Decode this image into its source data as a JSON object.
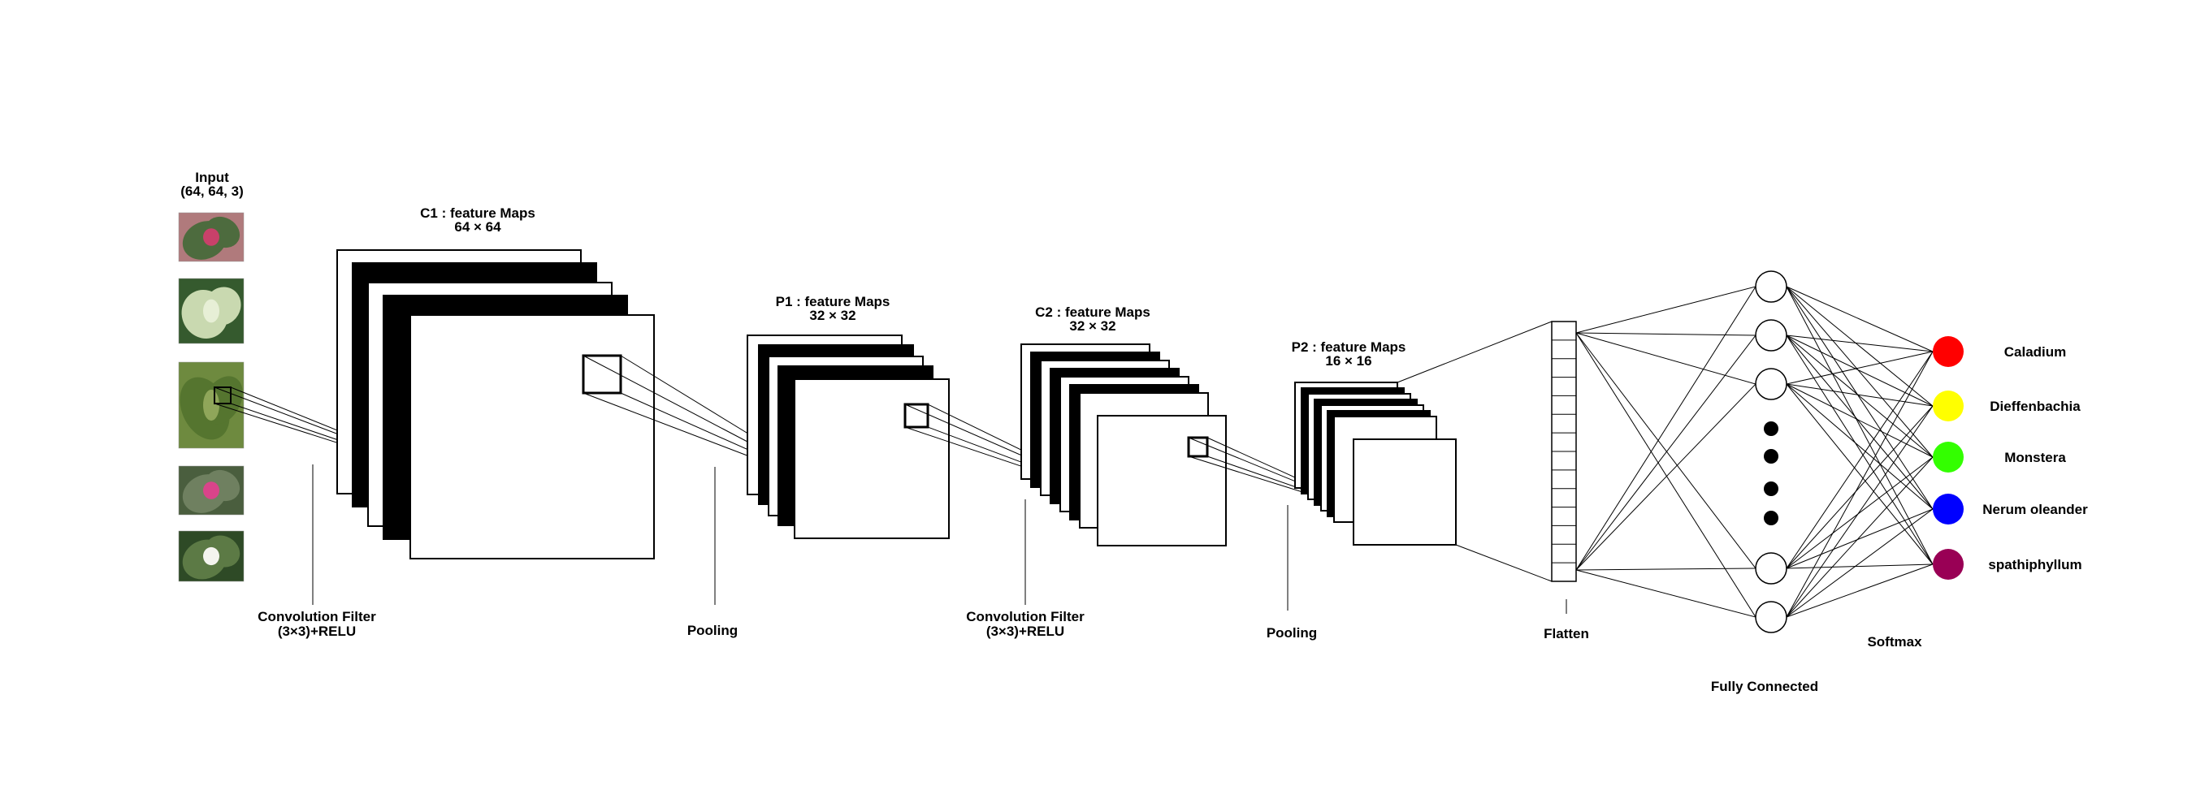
{
  "labels": {
    "input_title": "Input",
    "input_shape": "(64, 64, 3)",
    "c1_title": "C1 : feature Maps",
    "c1_size": "64 × 64",
    "p1_title": "P1 : feature Maps",
    "p1_size": "32 × 32",
    "c2_title": "C2 : feature Maps",
    "c2_size": "32 × 32",
    "p2_title": "P2 : feature Maps",
    "p2_size": "16 × 16",
    "conv1_line1": "Convolution Filter",
    "conv1_line2": "(3×3)+RELU",
    "pool1": "Pooling",
    "conv2_line1": "Convolution Filter",
    "conv2_line2": "(3×3)+RELU",
    "pool2": "Pooling",
    "flatten": "Flatten",
    "fully_connected": "Fully Connected",
    "softmax": "Softmax"
  },
  "inputs": [
    {
      "name": "caladium",
      "bg": "#b07a7c",
      "leaf": "#4d6b3e",
      "accent": "#c8416a"
    },
    {
      "name": "dieffenbachia",
      "bg": "#355a2e",
      "leaf": "#c9d9b0",
      "accent": "#e7efd6"
    },
    {
      "name": "monstera",
      "bg": "#6e8a3f",
      "leaf": "#55752f",
      "accent": "#8fa65a"
    },
    {
      "name": "oleander",
      "bg": "#4a5e3e",
      "leaf": "#6f8060",
      "accent": "#d9448a"
    },
    {
      "name": "spathiphyllum",
      "bg": "#2e4a26",
      "leaf": "#5c7a45",
      "accent": "#f4f4ee"
    }
  ],
  "outputs": [
    {
      "label": "Caladium",
      "color": "#ff0000"
    },
    {
      "label": "Dieffenbachia",
      "color": "#ffff00"
    },
    {
      "label": "Monstera",
      "color": "#33ff00"
    },
    {
      "label": "Nerum oleander",
      "color": "#0000ff"
    },
    {
      "label": "spathiphyllum",
      "color": "#990055"
    }
  ],
  "stacks": {
    "c1_maps": 5,
    "p1_maps": 4,
    "c2_maps": 7,
    "p2_maps": 7
  },
  "fc_visible_neurons": 5,
  "flatten_cells": 14
}
